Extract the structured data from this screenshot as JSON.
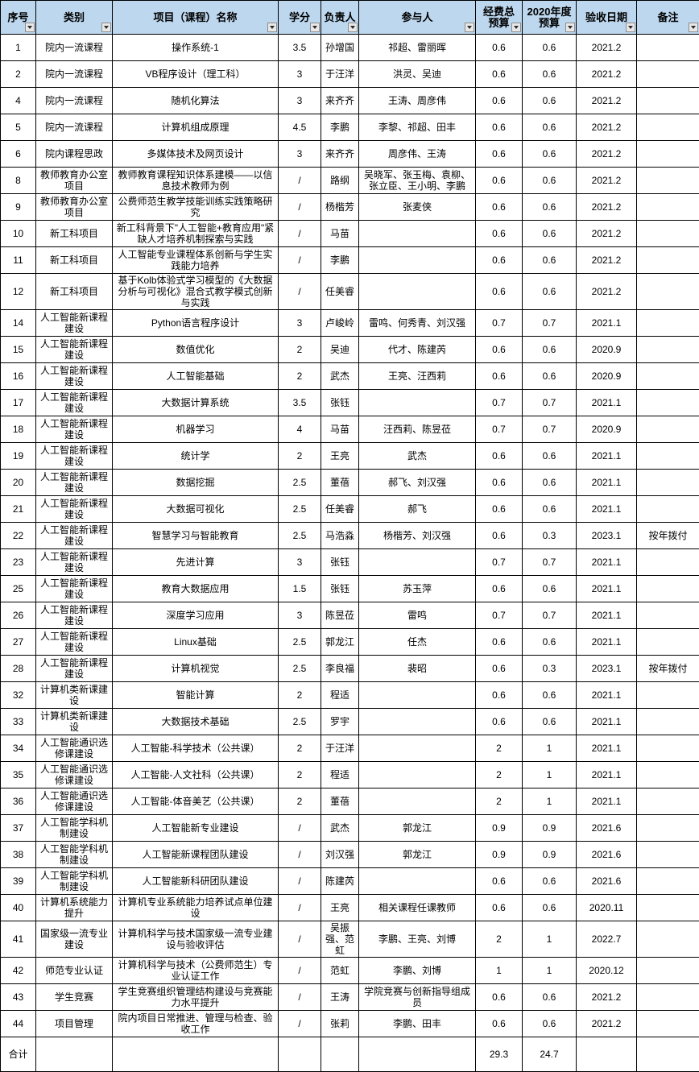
{
  "table": {
    "columns": [
      {
        "id": "index",
        "label": "序号"
      },
      {
        "id": "category",
        "label": "类别"
      },
      {
        "id": "name",
        "label": "项目（课程）名称"
      },
      {
        "id": "credits",
        "label": "学分"
      },
      {
        "id": "leader",
        "label": "负责人"
      },
      {
        "id": "participants",
        "label": "参与人"
      },
      {
        "id": "budget-total",
        "label": "经费总\n预算"
      },
      {
        "id": "budget-2020",
        "label": "2020年度\n预算"
      },
      {
        "id": "accept-date",
        "label": "验收日期"
      },
      {
        "id": "remark",
        "label": "备注"
      }
    ],
    "rows": [
      [
        "1",
        "院内一流课程",
        "操作系统-1",
        "3.5",
        "孙增国",
        "祁超、雷丽晖",
        "0.6",
        "0.6",
        "2021.2",
        ""
      ],
      [
        "2",
        "院内一流课程",
        "VB程序设计（理工科）",
        "3",
        "于汪洋",
        "洪灵、吴迪",
        "0.6",
        "0.6",
        "2021.2",
        ""
      ],
      [
        "4",
        "院内一流课程",
        "随机化算法",
        "3",
        "来齐齐",
        "王涛、周彦伟",
        "0.6",
        "0.6",
        "2021.2",
        ""
      ],
      [
        "5",
        "院内一流课程",
        "计算机组成原理",
        "4.5",
        "李鹏",
        "李黎、祁超、田丰",
        "0.6",
        "0.6",
        "2021.2",
        ""
      ],
      [
        "6",
        "院内课程思政",
        "多媒体技术及网页设计",
        "3",
        "来齐齐",
        "周彦伟、王涛",
        "0.6",
        "0.6",
        "2021.2",
        ""
      ],
      [
        "8",
        "教师教育办公室项目",
        "教师教育课程知识体系建模——以信息技术教师为例",
        "/",
        "路纲",
        "吴晓军、张玉梅、袁柳、张立臣、王小明、李鹏",
        "0.6",
        "0.6",
        "2021.2",
        ""
      ],
      [
        "9",
        "教师教育办公室项目",
        "公费师范生教学技能训练实践策略研究",
        "/",
        "杨楷芳",
        "张麦侠",
        "0.6",
        "0.6",
        "2021.2",
        ""
      ],
      [
        "10",
        "新工科项目",
        "新工科背景下\"人工智能+教育应用\"紧缺人才培养机制探索与实践",
        "/",
        "马苗",
        "",
        "0.6",
        "0.6",
        "2021.2",
        ""
      ],
      [
        "11",
        "新工科项目",
        "人工智能专业课程体系创新与学生实践能力培养",
        "/",
        "李鹏",
        "",
        "0.6",
        "0.6",
        "2021.2",
        ""
      ],
      [
        "12",
        "新工科项目",
        "基于Kolb体验式学习模型的《大数据分析与可视化》混合式教学模式创新与实践",
        "/",
        "任美睿",
        "",
        "0.6",
        "0.6",
        "2021.2",
        ""
      ],
      [
        "14",
        "人工智能新课程建设",
        "Python语言程序设计",
        "3",
        "卢峻岭",
        "雷鸣、何秀青、刘汉强",
        "0.7",
        "0.7",
        "2021.1",
        ""
      ],
      [
        "15",
        "人工智能新课程建设",
        "数值优化",
        "2",
        "吴迪",
        "代才、陈建芮",
        "0.6",
        "0.6",
        "2020.9",
        ""
      ],
      [
        "16",
        "人工智能新课程建设",
        "人工智能基础",
        "2",
        "武杰",
        "王亮、汪西莉",
        "0.6",
        "0.6",
        "2020.9",
        ""
      ],
      [
        "17",
        "人工智能新课程建设",
        "大数据计算系统",
        "3.5",
        "张钰",
        "",
        "0.7",
        "0.7",
        "2021.1",
        ""
      ],
      [
        "18",
        "人工智能新课程建设",
        "机器学习",
        "4",
        "马苗",
        "汪西莉、陈昱莅",
        "0.7",
        "0.7",
        "2020.9",
        ""
      ],
      [
        "19",
        "人工智能新课程建设",
        "统计学",
        "2",
        "王亮",
        "武杰",
        "0.6",
        "0.6",
        "2021.1",
        ""
      ],
      [
        "20",
        "人工智能新课程建设",
        "数据挖掘",
        "2.5",
        "董蓓",
        "郝飞、刘汉强",
        "0.6",
        "0.6",
        "2021.1",
        ""
      ],
      [
        "21",
        "人工智能新课程建设",
        "大数据可视化",
        "2.5",
        "任美睿",
        "郝飞",
        "0.6",
        "0.6",
        "2021.1",
        ""
      ],
      [
        "22",
        "人工智能新课程建设",
        "智慧学习与智能教育",
        "2.5",
        "马浩淼",
        "杨楷芳、刘汉强",
        "0.6",
        "0.3",
        "2023.1",
        "按年拨付"
      ],
      [
        "23",
        "人工智能新课程建设",
        "先进计算",
        "3",
        "张钰",
        "",
        "0.7",
        "0.7",
        "2021.1",
        ""
      ],
      [
        "25",
        "人工智能新课程建设",
        "教育大数据应用",
        "1.5",
        "张钰",
        "苏玉萍",
        "0.6",
        "0.6",
        "2021.1",
        ""
      ],
      [
        "26",
        "人工智能新课程建设",
        "深度学习应用",
        "3",
        "陈昱莅",
        "雷鸣",
        "0.7",
        "0.7",
        "2021.1",
        ""
      ],
      [
        "27",
        "人工智能新课程建设",
        "Linux基础",
        "2.5",
        "郭龙江",
        "任杰",
        "0.6",
        "0.6",
        "2021.1",
        ""
      ],
      [
        "28",
        "人工智能新课程建设",
        "计算机视觉",
        "2.5",
        "李良福",
        "裴昭",
        "0.6",
        "0.3",
        "2023.1",
        "按年拨付"
      ],
      [
        "32",
        "计算机类新课建设",
        "智能计算",
        "2",
        "程适",
        "",
        "0.6",
        "0.6",
        "2021.1",
        ""
      ],
      [
        "33",
        "计算机类新课建设",
        "大数据技术基础",
        "2.5",
        "罗宇",
        "",
        "0.6",
        "0.6",
        "2021.1",
        ""
      ],
      [
        "34",
        "人工智能通识选修课建设",
        "人工智能-科学技术（公共课）",
        "2",
        "于汪洋",
        "",
        "2",
        "1",
        "2021.1",
        ""
      ],
      [
        "35",
        "人工智能通识选修课建设",
        "人工智能-人文社科（公共课）",
        "2",
        "程适",
        "",
        "2",
        "1",
        "2021.1",
        ""
      ],
      [
        "36",
        "人工智能通识选修课建设",
        "人工智能-体音美艺（公共课）",
        "2",
        "董蓓",
        "",
        "2",
        "1",
        "2021.1",
        ""
      ],
      [
        "37",
        "人工智能学科机制建设",
        "人工智能新专业建设",
        "/",
        "武杰",
        "郭龙江",
        "0.9",
        "0.9",
        "2021.6",
        ""
      ],
      [
        "38",
        "人工智能学科机制建设",
        "人工智能新课程团队建设",
        "/",
        "刘汉强",
        "郭龙江",
        "0.9",
        "0.9",
        "2021.6",
        ""
      ],
      [
        "39",
        "人工智能学科机制建设",
        "人工智能新科研团队建设",
        "/",
        "陈建芮",
        "",
        "0.6",
        "0.6",
        "2021.6",
        ""
      ],
      [
        "40",
        "计算机系统能力提升",
        "计算机专业系统能力培养试点单位建设",
        "/",
        "王亮",
        "相关课程任课教师",
        "0.6",
        "0.6",
        "2020.11",
        ""
      ],
      [
        "41",
        "国家级一流专业建设",
        "计算机科学与技术国家级一流专业建设与验收评估",
        "/",
        "吴振强、范虹",
        "李鹏、王亮、刘博",
        "2",
        "1",
        "2022.7",
        ""
      ],
      [
        "42",
        "师范专业认证",
        "计算机科学与技术（公费师范生）专业认证工作",
        "/",
        "范虹",
        "李鹏、刘博",
        "1",
        "1",
        "2020.12",
        ""
      ],
      [
        "43",
        "学生竞赛",
        "学生竞赛组织管理结构建设与竞赛能力水平提升",
        "/",
        "王涛",
        "学院竞赛与创新指导组成员",
        "0.6",
        "0.6",
        "2021.2",
        ""
      ],
      [
        "44",
        "项目管理",
        "院内项目日常推进、管理与检查、验收工作",
        "/",
        "张莉",
        "李鹏、田丰",
        "0.6",
        "0.6",
        "2021.2",
        ""
      ]
    ],
    "total_row": [
      "合计",
      "",
      "",
      "",
      "",
      "",
      "29.3",
      "24.7",
      "",
      ""
    ]
  },
  "colors": {
    "header_bg": "#BDD7EE",
    "grid": "#000000",
    "cell_bg": "#FFFFFF"
  },
  "icons": {
    "filter": "filter-dropdown-icon"
  }
}
